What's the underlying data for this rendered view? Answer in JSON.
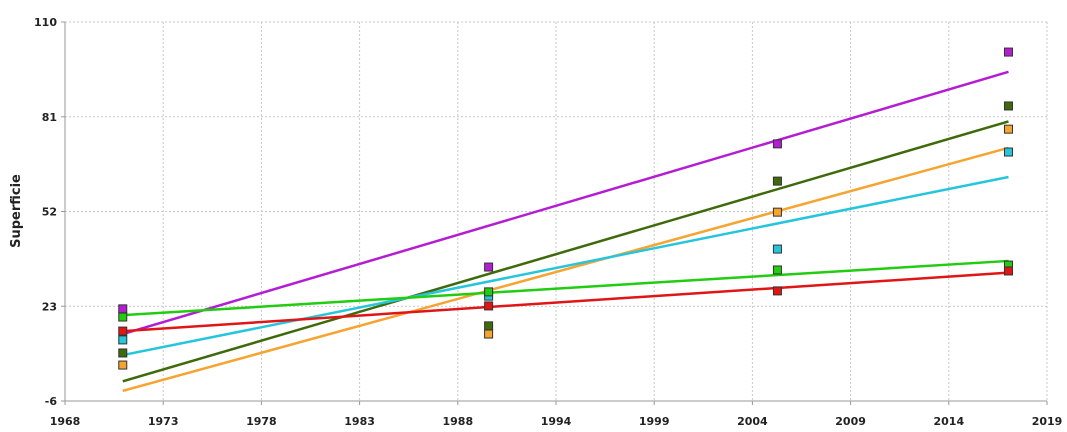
{
  "chart_data": {
    "type": "scatter",
    "y_label": "Superficie",
    "x": [
      1971,
      1990,
      2005,
      2017
    ],
    "xlim": [
      1968,
      2019
    ],
    "xticks": [
      1968,
      {
        "value": 1973.1,
        "label": "1973"
      },
      {
        "value": 1978.2,
        "label": "1978"
      },
      {
        "value": 1983.3,
        "label": "1983"
      },
      {
        "value": 1988.4,
        "label": "1988"
      },
      {
        "value": 1993.5,
        "label": "1994"
      },
      {
        "value": 1998.6,
        "label": "1999"
      },
      {
        "value": 2003.7,
        "label": "2004"
      },
      {
        "value": 2008.8,
        "label": "2009"
      },
      {
        "value": 2013.9,
        "label": "2014"
      },
      2019
    ],
    "ylim": [
      -6,
      110
    ],
    "yticks": [
      -6,
      23,
      52,
      81,
      110
    ],
    "grid": true,
    "trend_lines": true,
    "series": [
      {
        "color": "#b41ed2",
        "values": [
          22.2,
          35,
          72.7,
          100.8
        ]
      },
      {
        "color": "#3f6a0c",
        "values": [
          8.7,
          17,
          61.3,
          84.3
        ]
      },
      {
        "color": "#f5a431",
        "values": [
          5,
          14.5,
          51.8,
          77.2
        ]
      },
      {
        "color": "#25c6dc",
        "values": [
          12.7,
          26.1,
          40.5,
          70.2
        ]
      },
      {
        "color": "#22cc11",
        "values": [
          19.7,
          27.4,
          34.1,
          35.6
        ]
      },
      {
        "color": "#e01616",
        "values": [
          15.4,
          23.1,
          27.7,
          33.8
        ]
      }
    ]
  }
}
